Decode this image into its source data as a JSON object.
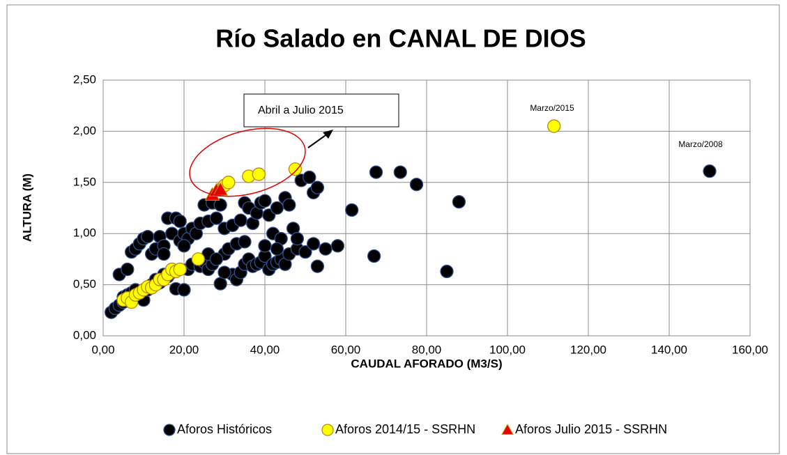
{
  "chart_data": {
    "type": "scatter",
    "title": "Río Salado en CANAL DE DIOS",
    "x_label": "CAUDAL AFORADO (M3/S)",
    "y_label": "ALTURA (M)",
    "xlim": [
      0,
      160
    ],
    "ylim": [
      0,
      2.5
    ],
    "xticks": [
      {
        "value": 0,
        "label": "0,00"
      },
      {
        "value": 20,
        "label": "20,00"
      },
      {
        "value": 40,
        "label": "40,00"
      },
      {
        "value": 60,
        "label": "60,00"
      },
      {
        "value": 80,
        "label": "80,00"
      },
      {
        "value": 100,
        "label": "100,00"
      },
      {
        "value": 120,
        "label": "120,00"
      },
      {
        "value": 140,
        "label": "140,00"
      },
      {
        "value": 160,
        "label": "160,00"
      }
    ],
    "yticks": [
      {
        "value": 0,
        "label": "0,00"
      },
      {
        "value": 0.5,
        "label": "0,50"
      },
      {
        "value": 1,
        "label": "1,00"
      },
      {
        "value": 1.5,
        "label": "1,50"
      },
      {
        "value": 2,
        "label": "2,00"
      },
      {
        "value": 2.5,
        "label": "2,50"
      }
    ],
    "grid": true,
    "legend": "bottom",
    "annotations": [
      "Abril a Julio 2015",
      "Marzo/2015",
      "Marzo/2008"
    ],
    "series": [
      {
        "name": "Aforos Históricos",
        "color": "#000000",
        "marker": "circle",
        "x": [
          2,
          3,
          4,
          5,
          5,
          6,
          6,
          7,
          8,
          9,
          10,
          11,
          12,
          13,
          14,
          15,
          16,
          17,
          18,
          20,
          21,
          22,
          24,
          25,
          26,
          27,
          29,
          30,
          32,
          33,
          34,
          35,
          36,
          37,
          38,
          39,
          40,
          41,
          42,
          43,
          44,
          45,
          46,
          48,
          50,
          52,
          53,
          55,
          58,
          67,
          85,
          4,
          6,
          7,
          8,
          9,
          10,
          11,
          12,
          13,
          14,
          15,
          16,
          17,
          18,
          19,
          19,
          20,
          21,
          22,
          23,
          24,
          25,
          26,
          27,
          28,
          29,
          30,
          31,
          32,
          33,
          34,
          35,
          36,
          37,
          38,
          39,
          40,
          41,
          42,
          43,
          44,
          45,
          46,
          47,
          49,
          51,
          52,
          53,
          61.5,
          67.5,
          73.5,
          77.5,
          88,
          150,
          15,
          20,
          26,
          35,
          40,
          43,
          48,
          30,
          28
        ],
        "values": [
          0.23,
          0.27,
          0.3,
          0.33,
          0.38,
          0.35,
          0.4,
          0.42,
          0.45,
          0.38,
          0.35,
          0.45,
          0.5,
          0.55,
          0.52,
          0.6,
          0.58,
          0.62,
          0.46,
          0.45,
          0.65,
          0.7,
          0.68,
          0.72,
          0.65,
          0.7,
          0.51,
          0.8,
          0.6,
          0.55,
          0.62,
          0.7,
          0.75,
          0.68,
          0.7,
          0.72,
          0.78,
          0.65,
          0.7,
          0.72,
          0.75,
          0.7,
          0.8,
          0.85,
          0.82,
          0.9,
          0.68,
          0.85,
          0.88,
          0.78,
          0.63,
          0.6,
          0.65,
          0.82,
          0.85,
          0.9,
          0.95,
          0.97,
          0.8,
          0.85,
          0.97,
          0.88,
          1.15,
          1.0,
          1.15,
          1.12,
          0.93,
          1.0,
          0.95,
          1.05,
          1.0,
          1.1,
          1.28,
          1.12,
          1.3,
          1.15,
          1.28,
          1.05,
          0.85,
          1.08,
          0.9,
          1.13,
          1.3,
          1.25,
          1.1,
          1.2,
          1.3,
          1.32,
          1.18,
          1.0,
          1.25,
          0.95,
          1.35,
          1.28,
          1.05,
          1.52,
          1.55,
          1.4,
          1.45,
          1.23,
          1.6,
          1.6,
          1.48,
          1.31,
          1.61,
          0.8,
          0.88,
          0.8,
          0.92,
          0.88,
          0.85,
          0.95,
          0.62,
          0.75
        ]
      },
      {
        "name": "Aforos 2014/15 - SSRHN",
        "color": "#ffff00",
        "marker": "circle",
        "x": [
          5,
          6,
          7,
          8,
          9,
          10,
          11,
          12,
          13,
          14,
          15,
          16,
          17,
          18,
          19,
          23.5,
          29,
          30,
          31,
          36,
          38.5,
          47.5,
          111.5
        ],
        "values": [
          0.35,
          0.37,
          0.33,
          0.4,
          0.42,
          0.45,
          0.48,
          0.47,
          0.5,
          0.55,
          0.55,
          0.6,
          0.65,
          0.63,
          0.65,
          0.75,
          1.43,
          1.47,
          1.5,
          1.56,
          1.58,
          1.63,
          2.05
        ]
      },
      {
        "name": "Aforos Julio 2015 - SSRHN",
        "color": "#e60000",
        "marker": "triangle",
        "x": [
          27,
          28,
          29
        ],
        "values": [
          1.38,
          1.42,
          1.43
        ]
      }
    ]
  }
}
